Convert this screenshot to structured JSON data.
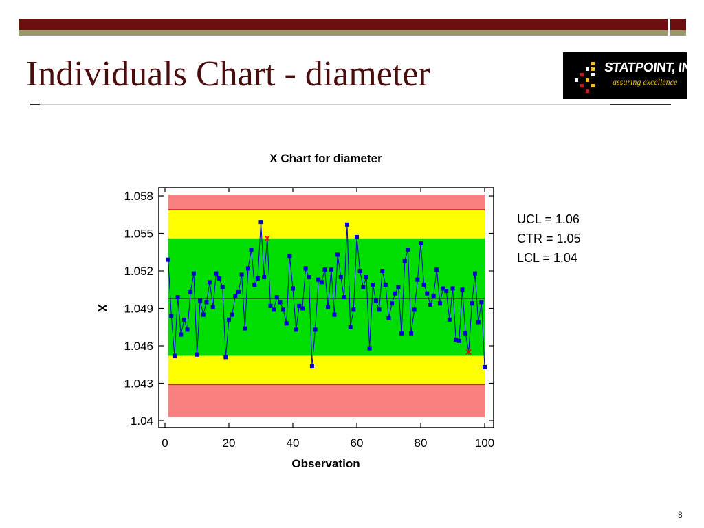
{
  "slide": {
    "title": "Individuals Chart - diameter",
    "page_number": "8",
    "logo": {
      "name": "STATPOINT, INC.",
      "tagline": "assuring excellence"
    }
  },
  "colors": {
    "title": "#4a0c0c",
    "bar_dark": "#6b0f0f",
    "bar_olive": "#9c9a6a",
    "zone_red": "#f98080",
    "zone_yellow": "#ffff00",
    "zone_green": "#00dd00",
    "series": "#0000cc",
    "flag": "#dd0000"
  },
  "legend": {
    "ucl": "UCL = 1.06",
    "ctr": "CTR = 1.05",
    "lcl": "LCL = 1.04"
  },
  "chart_data": {
    "type": "line",
    "title": "X Chart for diameter",
    "xlabel": "Observation",
    "ylabel": "X",
    "xlim": [
      0,
      100
    ],
    "ylim": [
      1.04,
      1.058
    ],
    "x_ticks": [
      "0",
      "20",
      "40",
      "60",
      "80",
      "100"
    ],
    "y_ticks": [
      "1.04",
      "1.043",
      "1.046",
      "1.049",
      "1.052",
      "1.055",
      "1.058"
    ],
    "limits": {
      "ucl": 1.0569,
      "ctr": 1.0498,
      "lcl": 1.0429,
      "upper_2sigma": 1.0546,
      "lower_2sigma": 1.0452
    },
    "limits_display_band": [
      1.0403,
      1.0581
    ],
    "flagged_points": [
      32,
      95
    ],
    "x": [
      1,
      2,
      3,
      4,
      5,
      6,
      7,
      8,
      9,
      10,
      11,
      12,
      13,
      14,
      15,
      16,
      17,
      18,
      19,
      20,
      21,
      22,
      23,
      24,
      25,
      26,
      27,
      28,
      29,
      30,
      31,
      32,
      33,
      34,
      35,
      36,
      37,
      38,
      39,
      40,
      41,
      42,
      43,
      44,
      45,
      46,
      47,
      48,
      49,
      50,
      51,
      52,
      53,
      54,
      55,
      56,
      57,
      58,
      59,
      60,
      61,
      62,
      63,
      64,
      65,
      66,
      67,
      68,
      69,
      70,
      71,
      72,
      73,
      74,
      75,
      76,
      77,
      78,
      79,
      80,
      81,
      82,
      83,
      84,
      85,
      86,
      87,
      88,
      89,
      90,
      91,
      92,
      93,
      94,
      95,
      96,
      97,
      98,
      99,
      100
    ],
    "series": [
      {
        "values": [
          1.0529,
          1.0484,
          1.0452,
          1.0499,
          1.0469,
          1.0481,
          1.0473,
          1.0503,
          1.0518,
          1.0453,
          1.0496,
          1.0485,
          1.0495,
          1.0511,
          1.0491,
          1.0518,
          1.0514,
          1.0507,
          1.0451,
          1.0481,
          1.0485,
          1.05,
          1.0503,
          1.0517,
          1.0474,
          1.0522,
          1.0537,
          1.0509,
          1.0514,
          1.0559,
          1.0515,
          1.0546,
          1.0492,
          1.0489,
          1.0499,
          1.0495,
          1.0489,
          1.0478,
          1.0532,
          1.0506,
          1.0473,
          1.0492,
          1.049,
          1.0522,
          1.0515,
          1.0444,
          1.0473,
          1.0513,
          1.0511,
          1.0521,
          1.0491,
          1.0521,
          1.0485,
          1.0533,
          1.0515,
          1.0499,
          1.0557,
          1.0475,
          1.0489,
          1.0547,
          1.052,
          1.0507,
          1.0515,
          1.0458,
          1.0509,
          1.0496,
          1.0489,
          1.052,
          1.0509,
          1.0482,
          1.0494,
          1.0502,
          1.0507,
          1.047,
          1.0528,
          1.0537,
          1.047,
          1.0489,
          1.0513,
          1.0542,
          1.0509,
          1.0502,
          1.0493,
          1.05,
          1.0521,
          1.0494,
          1.0506,
          1.0504,
          1.0481,
          1.0506,
          1.0465,
          1.0464,
          1.0505,
          1.047,
          1.0455,
          1.0494,
          1.0518,
          1.0479,
          1.0495,
          1.0443
        ]
      }
    ]
  }
}
